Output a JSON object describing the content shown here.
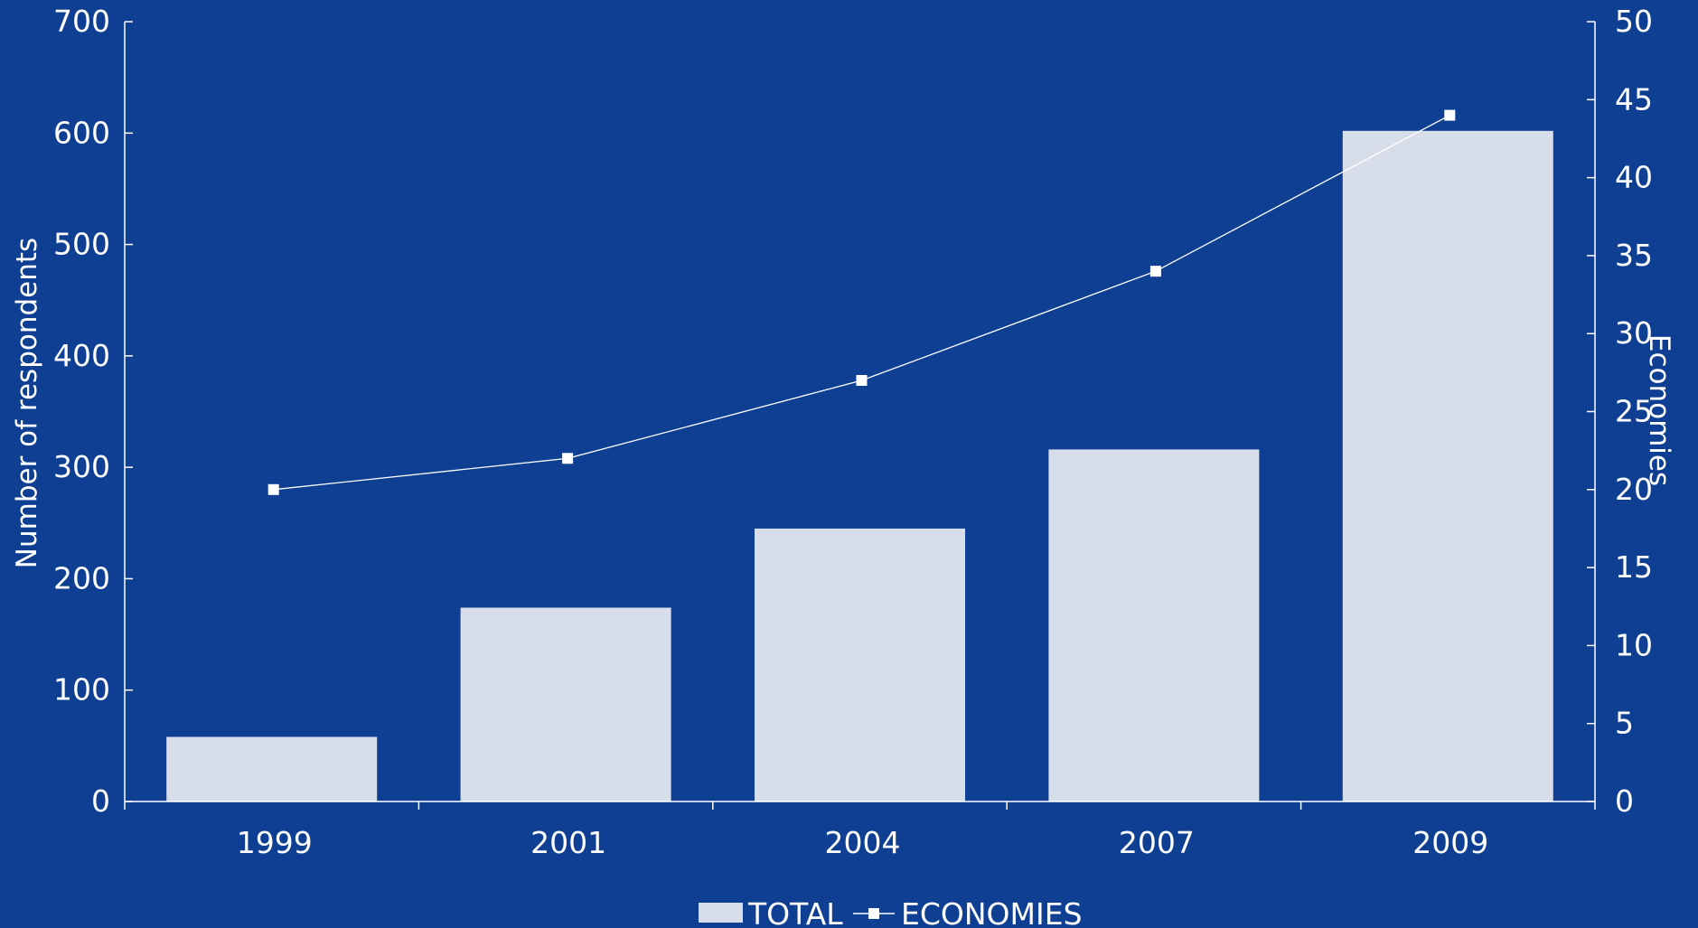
{
  "chart_data": {
    "type": "bar",
    "categories": [
      "1999",
      "2001",
      "2004",
      "2007",
      "2009"
    ],
    "series": [
      {
        "name": "TOTAL",
        "type": "bar",
        "axis": "left",
        "values": [
          58,
          174,
          245,
          316,
          602
        ]
      },
      {
        "name": "ECONOMIES",
        "type": "line",
        "axis": "right",
        "values": [
          20,
          22,
          27,
          34,
          44
        ]
      }
    ],
    "title": "",
    "xlabel": "",
    "ylabel": "Number of respondents",
    "y2label": "Economies",
    "ylim": [
      0,
      700
    ],
    "y2lim": [
      0,
      50
    ],
    "yticks": [
      "0",
      "100",
      "200",
      "300",
      "400",
      "500",
      "600",
      "700"
    ],
    "y2ticks": [
      "0",
      "5",
      "10",
      "15",
      "20",
      "25",
      "30",
      "35",
      "40",
      "45",
      "50"
    ],
    "grid": false,
    "legend": "bottom-center"
  },
  "colors": {
    "background": "#0f3f93",
    "bar": "#d7dee9",
    "line": "#ffffff",
    "text": "#ffffff"
  }
}
